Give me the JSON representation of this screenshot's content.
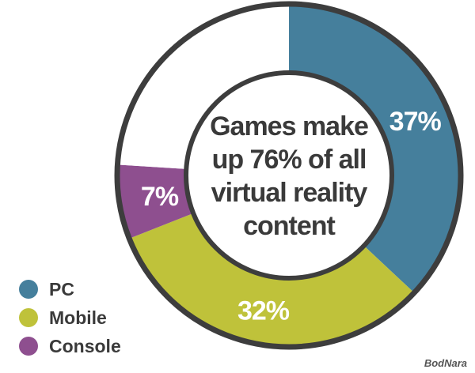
{
  "chart_data": {
    "type": "pie",
    "subtype": "donut",
    "center_text": [
      "Games make",
      "up 76% of all",
      "virtual reality",
      "content"
    ],
    "start_angle_deg": 0,
    "direction": "clockwise",
    "slices": [
      {
        "name": "PC",
        "value": 37,
        "label": "37%",
        "color": "#457f9c"
      },
      {
        "name": "Mobile",
        "value": 32,
        "label": "32%",
        "color": "#bfc23a"
      },
      {
        "name": "Console",
        "value": 7,
        "label": "7%",
        "color": "#8e4f8f"
      },
      {
        "name": "",
        "value": 24,
        "label": "",
        "color": "#ffffff"
      }
    ],
    "legend": {
      "placement": "bottom-left",
      "items": [
        {
          "label": "PC",
          "color": "#457f9c"
        },
        {
          "label": "Mobile",
          "color": "#bfc23a"
        },
        {
          "label": "Console",
          "color": "#8e4f8f"
        }
      ]
    },
    "outline_color": "#3d3d3d"
  },
  "watermark": "BodNara"
}
